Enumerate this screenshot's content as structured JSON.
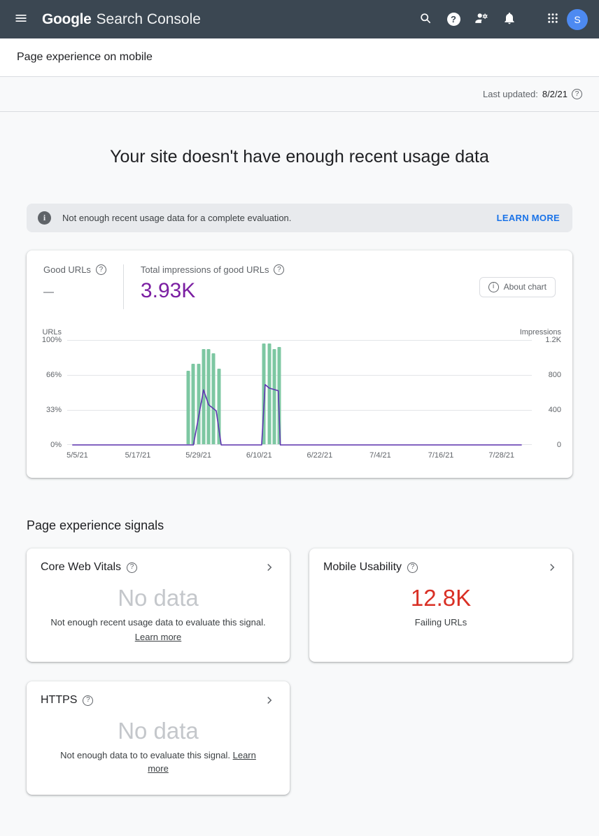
{
  "icons": {
    "help_glyph": "?",
    "info_glyph": "i"
  },
  "appbar": {
    "logo_google": "Google",
    "logo_product": "Search Console",
    "avatar_initial": "S",
    "bar_color": "#3b4752",
    "avatar_color": "#4d8af1"
  },
  "subheader": {
    "title": "Page experience on mobile"
  },
  "last_updated": {
    "label": "Last updated:",
    "date": "8/2/21"
  },
  "page": {
    "headline": "Your site doesn't have enough recent usage data",
    "signals_heading": "Page experience signals"
  },
  "banner": {
    "message": "Not enough recent usage data for a complete evaluation.",
    "action": "LEARN MORE",
    "action_color": "#1a73e8"
  },
  "summary": {
    "good_urls_label": "Good URLs",
    "good_urls_value": "—",
    "impressions_label": "Total impressions of good URLs",
    "impressions_value": "3.93K",
    "impressions_color": "#7b1fa2",
    "about_chart_label": "About chart"
  },
  "chart_data": {
    "type": "bar+line",
    "domain_days": [
      -2,
      90
    ],
    "x_ticks": [
      {
        "day": 0,
        "label": "5/5/21"
      },
      {
        "day": 12,
        "label": "5/17/21"
      },
      {
        "day": 24,
        "label": "5/29/21"
      },
      {
        "day": 36,
        "label": "6/10/21"
      },
      {
        "day": 48,
        "label": "6/22/21"
      },
      {
        "day": 60,
        "label": "7/4/21"
      },
      {
        "day": 72,
        "label": "7/16/21"
      },
      {
        "day": 84,
        "label": "7/28/21"
      }
    ],
    "left_axis": {
      "title": "URLs",
      "ticks": [
        "100%",
        "66%",
        "33%",
        "0%"
      ],
      "max_pct": 100
    },
    "right_axis": {
      "title": "Impressions",
      "ticks": [
        "1.2K",
        "800",
        "400",
        "0"
      ],
      "max": 1200
    },
    "bars": {
      "name": "Good URLs (% of URLs)",
      "color": "#7dc7a2",
      "points": [
        {
          "day": 22,
          "pct": 70
        },
        {
          "day": 23,
          "pct": 77
        },
        {
          "day": 24,
          "pct": 77
        },
        {
          "day": 25,
          "pct": 91
        },
        {
          "day": 26,
          "pct": 91
        },
        {
          "day": 27,
          "pct": 87
        },
        {
          "day": 28,
          "pct": 72
        },
        {
          "day": 37,
          "pct": 96
        },
        {
          "day": 38,
          "pct": 96
        },
        {
          "day": 39,
          "pct": 91
        },
        {
          "day": 40,
          "pct": 93
        }
      ]
    },
    "line": {
      "name": "Impressions of good URLs",
      "color": "#5e35b1",
      "points": [
        {
          "day": -1,
          "value": 0
        },
        {
          "day": 23,
          "value": 0
        },
        {
          "day": 25,
          "value": 630
        },
        {
          "day": 26,
          "value": 460
        },
        {
          "day": 27.5,
          "value": 390
        },
        {
          "day": 28.5,
          "value": 0
        },
        {
          "day": 36.5,
          "value": 0
        },
        {
          "day": 37.2,
          "value": 690
        },
        {
          "day": 38,
          "value": 650
        },
        {
          "day": 39.8,
          "value": 620
        },
        {
          "day": 40.2,
          "value": 0
        },
        {
          "day": 88,
          "value": 0
        }
      ]
    }
  },
  "cards": {
    "core_web_vitals": {
      "title": "Core Web Vitals",
      "value": "No data",
      "caption": "Not enough recent usage data to evaluate this signal.",
      "link": "Learn more"
    },
    "mobile_usability": {
      "title": "Mobile Usability",
      "value": "12.8K",
      "value_color": "#d93025",
      "caption": "Failing URLs"
    },
    "https": {
      "title": "HTTPS",
      "value": "No data",
      "caption": "Not enough data to to evaluate this signal.",
      "link": "Learn more"
    }
  }
}
